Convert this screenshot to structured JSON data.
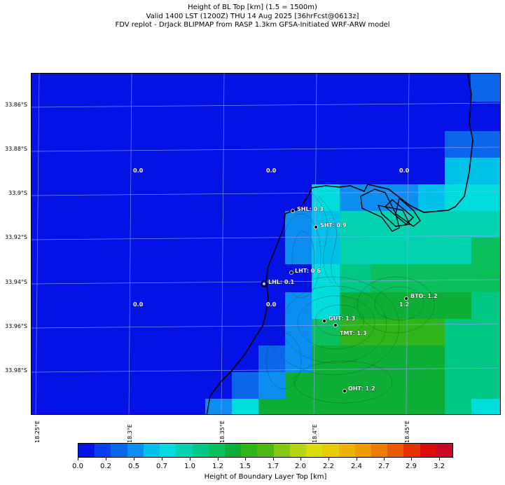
{
  "title": {
    "line1": "Height of BL Top [km] (1.5 = 1500m)",
    "line2": "Valid 1400 LST (1200Z) THU 14 Aug 2025 [36hrFcst@0613z]",
    "line3": "FDV replot - DrJack BLIPMAP from RASP 1.3km GFSA-Initiated WRF-ARW model"
  },
  "lat_labels": [
    "33.86°S",
    "33.88°S",
    "33.9°S",
    "33.92°S",
    "33.94°S",
    "33.96°S",
    "33.98°S"
  ],
  "lon_labels": [
    "18.25°E",
    "18.3°E",
    "18.35°E",
    "18.4°E",
    "18.45°E"
  ],
  "sites": [
    {
      "text": "SHL: 0.3"
    },
    {
      "text": "SHT: 0.9"
    },
    {
      "text": "LHT: 0.6"
    },
    {
      "text": "LHL: 0.1"
    },
    {
      "text": "BTO: 1.2"
    },
    {
      "text": "GUT: 1.3"
    },
    {
      "text": "TMT: 1.3"
    },
    {
      "text": "OHT: 1.2"
    }
  ],
  "grid_values": [
    "0.0",
    "0.0",
    "0.0",
    "0.0",
    "0.0",
    "1.2"
  ],
  "colorbar": {
    "label": "Height of Boundary Layer Top [km]",
    "ticks": [
      "0.0",
      "0.2",
      "0.5",
      "0.7",
      "1.0",
      "1.2",
      "1.5",
      "1.7",
      "2.0",
      "2.2",
      "2.4",
      "2.7",
      "2.9",
      "3.2"
    ],
    "colors": [
      "#0412e6",
      "#0a3ff0",
      "#0b66ea",
      "#0b8ef0",
      "#00c2e8",
      "#00dcdc",
      "#02d2b0",
      "#00c884",
      "#0bbf5a",
      "#0eae36",
      "#2fb41a",
      "#4fb812",
      "#84c814",
      "#b4d612",
      "#dcdc06",
      "#e6cc00",
      "#ecb400",
      "#ed9c00",
      "#ec7c00",
      "#e85a00",
      "#e43200",
      "#dc0a0a",
      "#c80a28"
    ]
  }
}
